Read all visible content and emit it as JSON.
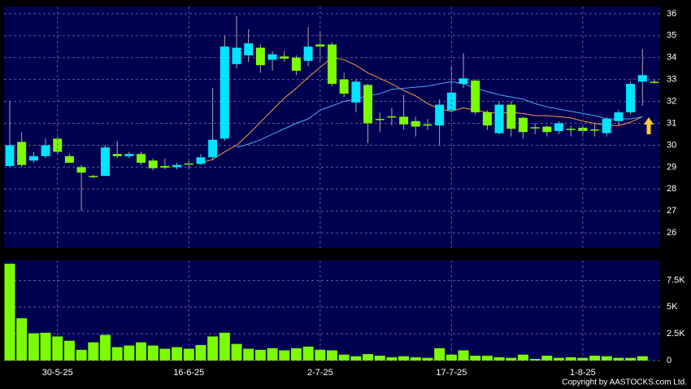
{
  "chart_data": [
    {
      "type": "candlestick",
      "up_color": "#00e5ff",
      "down_color": "#7cfc00",
      "wick_color": "#aaaaaa",
      "ylim": [
        25.3,
        36.33
      ],
      "yticks": [
        26,
        27,
        28,
        29,
        30,
        31,
        32,
        33,
        34,
        35,
        36
      ],
      "grid": true,
      "open": [
        29.05,
        30.15,
        29.3,
        29.5,
        30.3,
        29.5,
        29.0,
        28.6,
        28.6,
        29.6,
        29.5,
        29.6,
        29.3,
        29.05,
        29.0,
        29.17,
        29.15,
        29.45,
        30.3,
        33.7,
        34.1,
        34.45,
        33.9,
        34.05,
        34.0,
        33.85,
        34.6,
        34.6,
        33.0,
        31.95,
        32.75,
        31.2,
        31.32,
        31.3,
        31.1,
        30.95,
        30.9,
        31.6,
        32.8,
        32.95,
        31.5,
        30.55,
        31.85,
        31.25,
        30.82,
        30.85,
        30.65,
        30.75,
        30.8,
        30.72,
        30.55,
        31.1,
        31.5,
        32.9,
        32.9
      ],
      "high": [
        32.0,
        30.6,
        29.7,
        30.3,
        30.4,
        29.6,
        29.1,
        28.65,
        30.0,
        30.2,
        29.7,
        29.7,
        29.4,
        29.4,
        29.2,
        29.3,
        29.6,
        32.6,
        35.0,
        35.9,
        35.3,
        34.6,
        34.3,
        34.3,
        34.1,
        35.4,
        35.2,
        34.7,
        33.3,
        33.0,
        32.8,
        31.5,
        31.7,
        32.3,
        31.3,
        31.2,
        32.1,
        33.6,
        34.2,
        33.0,
        31.6,
        32.0,
        32.0,
        31.3,
        31.0,
        30.9,
        31.1,
        30.9,
        30.9,
        31.0,
        31.3,
        31.6,
        32.9,
        34.4,
        33.0
      ],
      "low": [
        29.0,
        29.0,
        29.2,
        29.4,
        29.6,
        29.2,
        27.0,
        28.5,
        28.6,
        29.4,
        29.4,
        29.1,
        28.85,
        28.9,
        28.9,
        28.9,
        29.1,
        29.3,
        30.2,
        33.5,
        33.8,
        33.3,
        33.4,
        33.8,
        33.2,
        33.6,
        33.8,
        32.7,
        32.2,
        31.5,
        30.1,
        30.6,
        30.9,
        30.7,
        30.4,
        30.7,
        30.0,
        31.5,
        32.6,
        31.4,
        30.7,
        30.5,
        30.4,
        30.3,
        30.5,
        30.4,
        30.5,
        30.4,
        30.4,
        30.4,
        30.4,
        30.9,
        31.4,
        31.8,
        32.8
      ],
      "close": [
        30.0,
        29.1,
        29.5,
        30.0,
        29.7,
        29.2,
        28.75,
        28.55,
        29.9,
        29.5,
        29.6,
        29.2,
        28.95,
        28.98,
        29.1,
        29.13,
        29.45,
        30.25,
        34.5,
        34.45,
        34.65,
        33.65,
        34.15,
        33.95,
        33.4,
        34.5,
        34.5,
        32.8,
        32.35,
        32.9,
        31.0,
        31.15,
        31.28,
        30.95,
        30.85,
        30.9,
        31.85,
        32.4,
        33.05,
        31.5,
        30.9,
        31.85,
        30.75,
        30.6,
        30.78,
        30.6,
        31.0,
        30.7,
        30.65,
        30.68,
        31.2,
        31.5,
        32.8,
        33.2,
        32.85
      ],
      "lines": [
        {
          "color": "#ff9933",
          "values": [
            null,
            null,
            null,
            null,
            null,
            null,
            null,
            null,
            null,
            null,
            null,
            null,
            null,
            null,
            null,
            null,
            29.2,
            29.35,
            29.7,
            30.0,
            30.5,
            31.05,
            31.6,
            32.15,
            32.6,
            33.1,
            33.55,
            34.0,
            33.9,
            33.65,
            33.3,
            33.05,
            32.8,
            32.5,
            32.25,
            31.9,
            31.65,
            31.55,
            31.7,
            31.6,
            31.5,
            31.45,
            31.5,
            31.45,
            31.35,
            31.35,
            31.3,
            31.25,
            31.1,
            31.0,
            30.9,
            30.9,
            31.05,
            31.3,
            null
          ]
        },
        {
          "color": "#4aa8ff",
          "values": [
            null,
            null,
            null,
            null,
            null,
            null,
            null,
            null,
            null,
            null,
            null,
            null,
            null,
            null,
            null,
            null,
            null,
            null,
            null,
            29.9,
            30.05,
            30.25,
            30.5,
            30.75,
            31.0,
            31.2,
            31.6,
            31.8,
            32.0,
            32.1,
            32.25,
            32.35,
            32.55,
            32.6,
            32.65,
            32.7,
            32.8,
            32.9,
            32.8,
            32.6,
            32.45,
            32.3,
            32.2,
            32.1,
            31.9,
            31.75,
            31.65,
            31.55,
            31.45,
            31.35,
            31.2,
            31.2,
            31.2,
            31.3,
            null
          ]
        }
      ]
    },
    {
      "type": "bar",
      "color": "#7cfc00",
      "categories": [
        null,
        null,
        null,
        null,
        "30-5-25",
        null,
        null,
        null,
        null,
        null,
        null,
        null,
        null,
        null,
        null,
        "16-6-25",
        null,
        null,
        null,
        null,
        null,
        null,
        null,
        null,
        null,
        null,
        "2-7-25",
        null,
        null,
        null,
        null,
        null,
        null,
        null,
        null,
        null,
        null,
        "17-7-25",
        null,
        null,
        null,
        null,
        null,
        null,
        null,
        null,
        null,
        null,
        "1-8-25",
        null,
        null,
        null,
        null,
        null,
        null
      ],
      "values": [
        9050,
        3950,
        2550,
        2600,
        2250,
        1850,
        1000,
        1700,
        2400,
        1250,
        1400,
        1700,
        1400,
        1100,
        1250,
        1100,
        1450,
        2250,
        2600,
        1550,
        1100,
        1000,
        1150,
        950,
        1150,
        1300,
        1000,
        950,
        550,
        400,
        600,
        450,
        300,
        400,
        300,
        250,
        1150,
        550,
        950,
        450,
        450,
        300,
        250,
        550,
        150,
        450,
        250,
        300,
        250,
        450,
        400,
        250,
        250,
        400,
        null
      ],
      "ylim": [
        0,
        9360
      ],
      "yticks": [
        0,
        {
          "value": 2500,
          "label": "2.5K"
        },
        {
          "value": 5000,
          "label": "5K"
        },
        {
          "value": 7500,
          "label": "7.5K"
        }
      ],
      "grid": true
    }
  ],
  "copyright": "Copyright by AASTOCKS.com Ltd."
}
